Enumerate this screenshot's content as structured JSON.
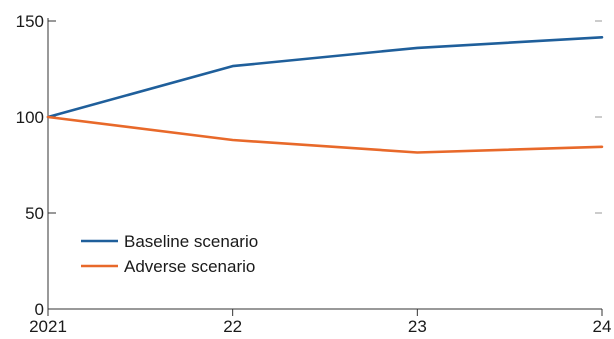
{
  "chart_data": {
    "type": "line",
    "title": "",
    "xlabel": "",
    "ylabel": "",
    "x": [
      "2021",
      "22",
      "23",
      "24"
    ],
    "ylim": [
      0,
      150
    ],
    "yticks": [
      0,
      50,
      100,
      150
    ],
    "grid": false,
    "legend_position": "bottom-left",
    "series": [
      {
        "name": "Baseline scenario",
        "color": "#1f5f9b",
        "values": [
          100,
          126.5,
          136,
          141.5
        ]
      },
      {
        "name": "Adverse scenario",
        "color": "#e8692a",
        "values": [
          100,
          88,
          81.5,
          84.5
        ]
      }
    ]
  }
}
